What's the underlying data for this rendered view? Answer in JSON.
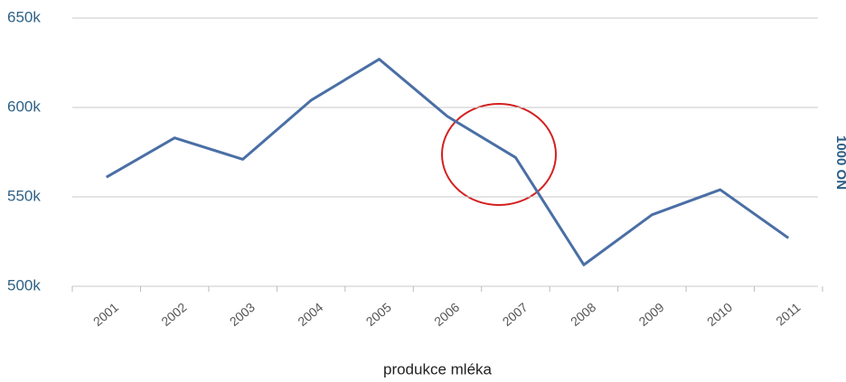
{
  "chart_data": {
    "type": "line",
    "x_label": "produkce mléka",
    "y2_label": "1000 ON",
    "categories": [
      "2001",
      "2002",
      "2003",
      "2004",
      "2005",
      "2006",
      "2007",
      "2008",
      "2009",
      "2010",
      "2011"
    ],
    "series": [
      {
        "color": "#4a6fa5",
        "values": [
          561000,
          583000,
          571000,
          604000,
          627000,
          595000,
          572000,
          512000,
          540000,
          554000,
          527000
        ]
      }
    ],
    "ylim": [
      500000,
      650000
    ],
    "yticks": [
      {
        "value": 500000,
        "label": "500k"
      },
      {
        "value": 550000,
        "label": "550k"
      },
      {
        "value": 600000,
        "label": "600k"
      },
      {
        "value": 650000,
        "label": "650k"
      }
    ],
    "grid": true
  }
}
